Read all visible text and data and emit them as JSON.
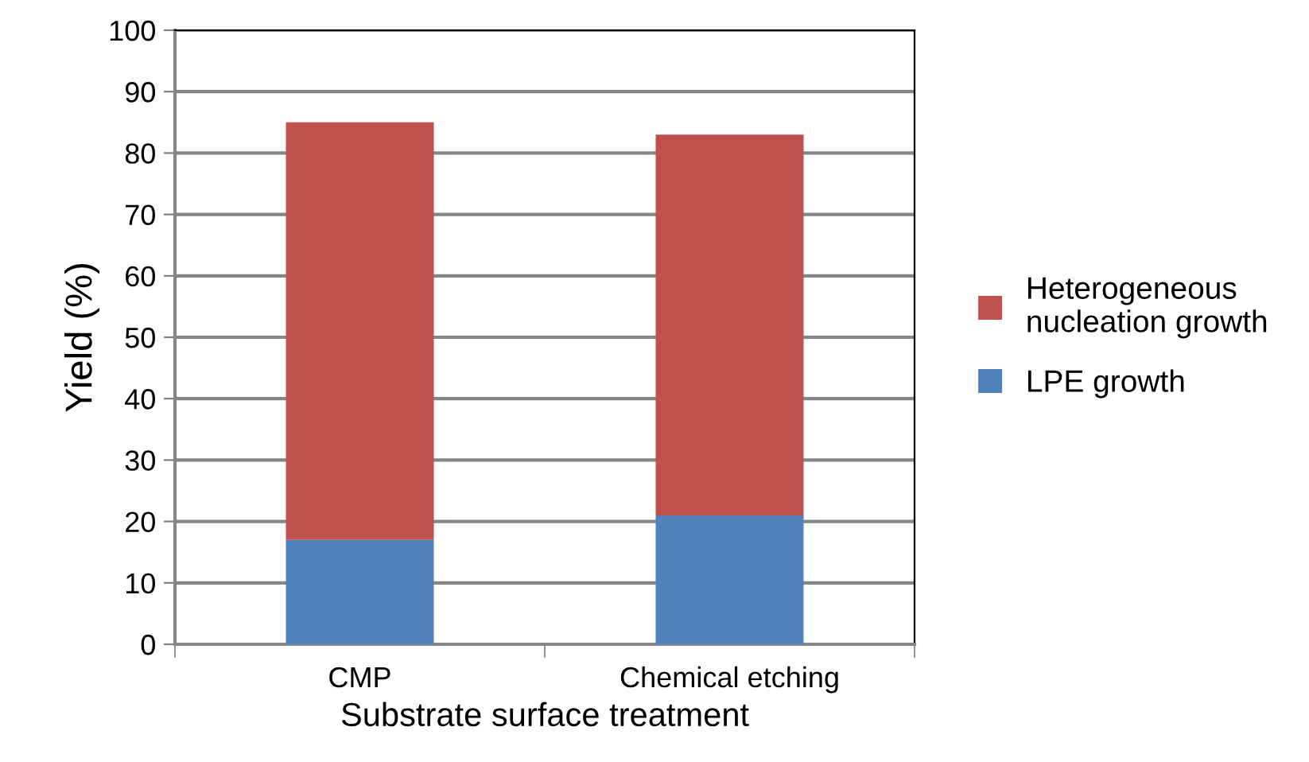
{
  "chart_data": {
    "type": "bar",
    "stacked": true,
    "xlabel": "Substrate surface treatment",
    "ylabel": "Yield (%)",
    "categories": [
      "CMP",
      "Chemical etching"
    ],
    "series": [
      {
        "name": "LPE growth",
        "color": "#4f81bd",
        "values": [
          17,
          21
        ]
      },
      {
        "name": "Heterogeneous\nnucleation growth",
        "color": "#c0504d",
        "values": [
          68,
          62
        ]
      }
    ],
    "ylim": [
      0,
      100
    ],
    "yticks": [
      0,
      10,
      20,
      30,
      40,
      50,
      60,
      70,
      80,
      90,
      100
    ],
    "grid": "y",
    "legend": "right"
  }
}
